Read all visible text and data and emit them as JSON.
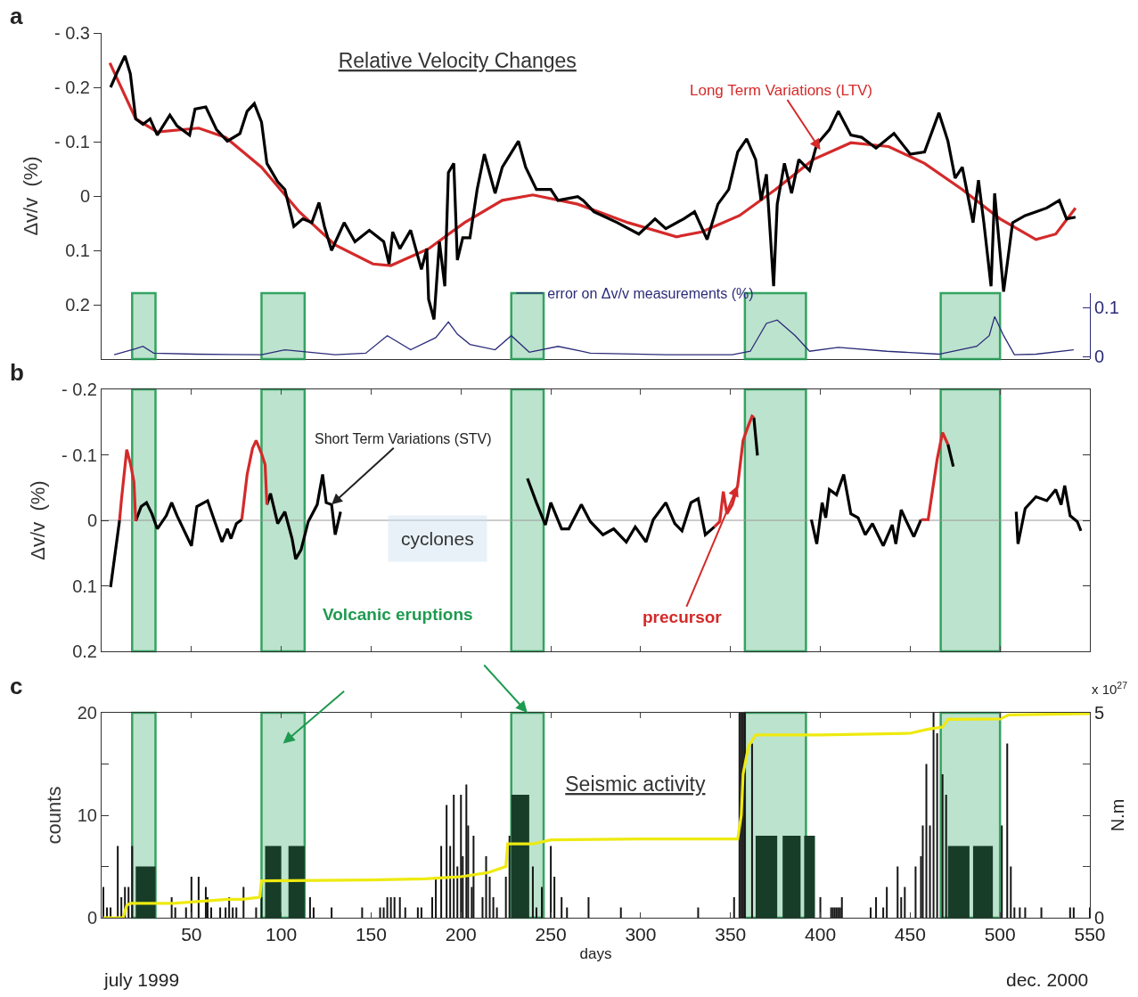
{
  "chart_data": [
    {
      "type": "line",
      "title": "Relative Velocity Changes",
      "ylabel": "Δv/v  (%)",
      "annotations": [
        "a",
        {
          "text": "Long Term Variations (LTV)",
          "x": 400,
          "y": -0.085
        }
      ],
      "xlim": [
        0,
        550
      ],
      "ylim": [
        0.3,
        -0.3
      ],
      "yticks": [
        {
          "value": -0.3,
          "label": "- 0.3"
        },
        {
          "value": -0.2,
          "label": "- 0.2"
        },
        {
          "value": -0.1,
          "label": "- 0.1"
        },
        0,
        0.1,
        0.2
      ],
      "tick_labels": "y",
      "series": [
        {
          "color": "#d42a2a",
          "x": [
            4.6,
            19,
            31,
            54,
            69,
            89,
            110,
            130,
            151,
            161,
            182,
            202,
            223,
            240,
            265,
            293,
            320,
            334,
            355,
            375,
            396,
            417,
            438,
            458,
            479,
            500,
            520,
            531,
            542
          ],
          "values": [
            -0.245,
            -0.142,
            -0.118,
            -0.125,
            -0.108,
            -0.053,
            0.029,
            0.09,
            0.125,
            0.128,
            0.097,
            0.049,
            0.008,
            -0.002,
            0.015,
            0.049,
            0.075,
            0.066,
            0.036,
            -0.012,
            -0.067,
            -0.098,
            -0.091,
            -0.06,
            -0.012,
            0.042,
            0.08,
            0.07,
            0.022
          ]
        },
        {
          "color": "#000000",
          "x": [
            5,
            9,
            13,
            16,
            19,
            23,
            27,
            31,
            38,
            42,
            49,
            52,
            58,
            64,
            70,
            77,
            81,
            85,
            89,
            92,
            98,
            102,
            107,
            112,
            117,
            121,
            124,
            128,
            135,
            141,
            149,
            157,
            160,
            162,
            166,
            172,
            178,
            181,
            182,
            185,
            188,
            191,
            193,
            196,
            198,
            201,
            205,
            209,
            213,
            219,
            223,
            232,
            236,
            242,
            250,
            254,
            265,
            268,
            274,
            287,
            299,
            308,
            314,
            324,
            330,
            337,
            343,
            349,
            354,
            359,
            364,
            367,
            370,
            374,
            376,
            380,
            384,
            388,
            394,
            398,
            405,
            410,
            417,
            423,
            431,
            441,
            450,
            458,
            466,
            471,
            475,
            479,
            485,
            488,
            491,
            495,
            497,
            502,
            507,
            514,
            520,
            526,
            533,
            537,
            542
          ],
          "values": [
            -0.2,
            -0.23,
            -0.258,
            -0.225,
            -0.142,
            -0.132,
            -0.142,
            -0.112,
            -0.149,
            -0.129,
            -0.112,
            -0.16,
            -0.164,
            -0.122,
            -0.101,
            -0.115,
            -0.156,
            -0.17,
            -0.136,
            -0.06,
            -0.026,
            -0.012,
            0.056,
            0.042,
            0.049,
            0.012,
            0.056,
            0.1,
            0.049,
            0.084,
            0.063,
            0.084,
            0.125,
            0.066,
            0.097,
            0.063,
            0.135,
            0.097,
            0.19,
            0.227,
            0.084,
            0.166,
            -0.043,
            -0.06,
            0.118,
            0.077,
            0.077,
            -0.012,
            -0.077,
            -0.005,
            -0.053,
            -0.101,
            -0.053,
            -0.012,
            -0.012,
            0.008,
            0.001,
            0.008,
            0.029,
            0.049,
            0.07,
            0.042,
            0.06,
            0.042,
            0.029,
            0.08,
            0.015,
            -0.012,
            -0.081,
            -0.105,
            -0.067,
            0.008,
            -0.04,
            0.166,
            0.015,
            -0.06,
            -0.005,
            -0.067,
            -0.047,
            -0.095,
            -0.122,
            -0.156,
            -0.112,
            -0.108,
            -0.088,
            -0.115,
            -0.077,
            -0.081,
            -0.153,
            -0.101,
            -0.033,
            -0.053,
            0.049,
            -0.029,
            0.049,
            0.166,
            -0.005,
            0.176,
            0.049,
            0.036,
            0.029,
            0.022,
            0.008,
            0.042,
            0.039
          ]
        }
      ]
    },
    {
      "type": "line",
      "xlim": [
        0,
        550
      ],
      "ylim": [
        -0.005,
        0.13
      ],
      "yticks": [
        0,
        0.1
      ],
      "tick_labels": "y",
      "legend": "top",
      "bands": [
        {
          "axis": "x",
          "from": 17,
          "to": 30,
          "color": "#b5e0c8"
        },
        {
          "axis": "x",
          "from": 89,
          "to": 113,
          "color": "#b5e0c8"
        },
        {
          "axis": "x",
          "from": 228,
          "to": 246,
          "color": "#b5e0c8"
        },
        {
          "axis": "x",
          "from": 358,
          "to": 392,
          "color": "#b5e0c8"
        },
        {
          "axis": "x",
          "from": 467,
          "to": 500,
          "color": "#b5e0c8"
        }
      ],
      "series": [
        {
          "name": "error on Δv/v measurements (%)",
          "color": "#2b2b7a",
          "x": [
            7,
            19,
            23,
            29,
            52,
            89,
            102,
            130,
            147,
            159,
            172,
            186,
            193,
            198,
            205,
            219,
            228,
            238,
            254,
            267,
            272,
            314,
            351,
            361,
            370,
            376,
            386,
            394,
            410,
            437,
            466,
            487,
            494,
            497,
            502,
            508,
            520,
            541
          ],
          "values": [
            0.004,
            0.016,
            0.021,
            0.007,
            0.005,
            0.004,
            0.014,
            0.004,
            0.007,
            0.043,
            0.014,
            0.039,
            0.071,
            0.046,
            0.025,
            0.014,
            0.043,
            0.009,
            0.021,
            0.011,
            0.007,
            0.004,
            0.004,
            0.011,
            0.068,
            0.075,
            0.043,
            0.011,
            0.019,
            0.011,
            0.005,
            0.021,
            0.043,
            0.082,
            0.043,
            0.004,
            0.005,
            0.014
          ]
        }
      ]
    },
    {
      "type": "line",
      "ylabel": "Δv/v  (%)",
      "annotations": [
        "b",
        {
          "text": "Short Term Variations (STV)",
          "x": 128,
          "y": -0.024
        },
        "cyclones",
        "Volcanic eruptions",
        {
          "text": "precursor",
          "x": 354,
          "y": -0.053
        }
      ],
      "xlim": [
        0,
        550
      ],
      "xticks": [
        50,
        100,
        150,
        200,
        250,
        300,
        350,
        400,
        450,
        500,
        550
      ],
      "ylim": [
        0.2,
        -0.2
      ],
      "yticks": [
        {
          "value": -0.2,
          "label": "- 0.2"
        },
        {
          "value": -0.1,
          "label": "- 0.1"
        },
        0,
        0.1,
        0.2
      ],
      "tick_labels": "y",
      "ref_lines": [
        {
          "axis": "y",
          "value": 0,
          "color": "#9a9a9a"
        }
      ],
      "bands": [
        {
          "axis": "x",
          "from": 17,
          "to": 30,
          "color": "#b5e0c8"
        },
        {
          "axis": "x",
          "from": 89,
          "to": 113,
          "color": "#b5e0c8"
        },
        {
          "axis": "x",
          "from": 228,
          "to": 246,
          "color": "#b5e0c8"
        },
        {
          "axis": "x",
          "from": 358,
          "to": 392,
          "color": "#b5e0c8"
        },
        {
          "axis": "x",
          "from": 467,
          "to": 500,
          "color": "#b5e0c8"
        }
      ],
      "series": [
        {
          "color": "#000000",
          "x": [
            5,
            10,
            14,
            19,
            22,
            25,
            28,
            31,
            36,
            39,
            42,
            46,
            50,
            53,
            59,
            63,
            67,
            70,
            72,
            75,
            78,
            85,
            92,
            94,
            98,
            102,
            106,
            108,
            111,
            115,
            120,
            123,
            125,
            128,
            130,
            133,
            180,
            237,
            242,
            247,
            250,
            256,
            260,
            267,
            272,
            279,
            285,
            292,
            297,
            303,
            307,
            314,
            319,
            323,
            328,
            332,
            336,
            341,
            350,
            363,
            365,
            380,
            395,
            398,
            401,
            403,
            405,
            409,
            413,
            417,
            421,
            425,
            429,
            435,
            440,
            442,
            445,
            448,
            452,
            456,
            463,
            471,
            474,
            490,
            509,
            510,
            514,
            520,
            526,
            531,
            534,
            536,
            539,
            543,
            545
          ],
          "values": [
            0.102,
            0,
            null,
            0.001,
            -0.021,
            -0.027,
            -0.01,
            0.013,
            -0.007,
            -0.027,
            -0.007,
            0.016,
            0.039,
            -0.021,
            -0.03,
            0.002,
            0.033,
            0.013,
            0.028,
            0.005,
            -0.001,
            null,
            -0.024,
            -0.041,
            0.005,
            -0.013,
            0.028,
            0.059,
            0.045,
            0.002,
            -0.024,
            -0.07,
            -0.027,
            -0.024,
            0.022,
            -0.013,
            null,
            -0.064,
            -0.027,
            0.007,
            -0.027,
            0.013,
            0.013,
            -0.024,
            0.002,
            0.022,
            0.013,
            0.033,
            0.01,
            0.033,
            -0.001,
            -0.027,
            0.005,
            0.016,
            -0.027,
            -0.033,
            0.022,
            0.01,
            null,
            -0.157,
            -0.099,
            null,
            -0.001,
            0.036,
            -0.027,
            -0.004,
            -0.047,
            -0.039,
            -0.07,
            -0.01,
            -0.004,
            0.022,
            0.005,
            0.039,
            0.007,
            0.036,
            -0.016,
            0.002,
            0.025,
            -0.001,
            null,
            -0.116,
            -0.082,
            null,
            -0.013,
            0.036,
            -0.018,
            -0.036,
            -0.03,
            -0.047,
            -0.024,
            -0.053,
            -0.007,
            0.002,
            0.016
          ]
        },
        {
          "color": "#d42a2a",
          "x": [
            10,
            11,
            14,
            16,
            18,
            19,
            50,
            78,
            81,
            84,
            86,
            89,
            91,
            92,
            200,
            341,
            344,
            346,
            348,
            351,
            354,
            357,
            360,
            362,
            363,
            420,
            456,
            460,
            465,
            468,
            471
          ],
          "values": [
            0,
            -0.03,
            -0.108,
            -0.087,
            -0.059,
            0.001,
            null,
            -0.001,
            -0.07,
            -0.11,
            -0.122,
            -0.102,
            -0.085,
            -0.024,
            null,
            0.01,
            0.002,
            -0.044,
            -0.01,
            -0.024,
            -0.053,
            -0.122,
            -0.145,
            -0.159,
            -0.157,
            null,
            -0.001,
            -0.001,
            -0.093,
            -0.134,
            -0.116
          ]
        }
      ]
    },
    {
      "type": "bar",
      "title": "Seismic activity",
      "xlabel": "days",
      "ylabel": "counts",
      "y2label": "N.m",
      "annotations": [
        "c",
        "july 1999",
        "dec. 2000",
        "x 10$^{27}$"
      ],
      "xlim": [
        0,
        550
      ],
      "xticks": [
        50,
        100,
        150,
        200,
        250,
        300,
        350,
        400,
        450,
        500,
        550
      ],
      "ylim": [
        0,
        20
      ],
      "yticks": [
        0,
        {
          "value": 5,
          "label": null
        },
        10,
        {
          "value": 15,
          "label": null
        },
        20
      ],
      "y2lim": [
        0,
        5
      ],
      "y2ticks": [
        0,
        {
          "value": 1.25,
          "label": null
        },
        {
          "value": 2.5,
          "label": null
        },
        {
          "value": 3.75,
          "label": null
        },
        5
      ],
      "bands": [
        {
          "axis": "x",
          "from": 17,
          "to": 30,
          "color": "#b5e0c8"
        },
        {
          "axis": "x",
          "from": 89,
          "to": 113,
          "color": "#b5e0c8"
        },
        {
          "axis": "x",
          "from": 228,
          "to": 246,
          "color": "#b5e0c8"
        },
        {
          "axis": "x",
          "from": 358,
          "to": 392,
          "color": "#b5e0c8"
        },
        {
          "axis": "x",
          "from": 467,
          "to": 500,
          "color": "#b5e0c8"
        }
      ],
      "series": [
        {
          "color": "#161616",
          "x": [
            1,
            3,
            5,
            9,
            11,
            13,
            15,
            17,
            39,
            41,
            47,
            50,
            54,
            58,
            59,
            61,
            66,
            69,
            71,
            73,
            75,
            79,
            86,
            89,
            116,
            118,
            128,
            145,
            155,
            157,
            159,
            161,
            163,
            166,
            169,
            176,
            178,
            184,
            186,
            189,
            192,
            194,
            196,
            198,
            200,
            201,
            203,
            204,
            206,
            207,
            212,
            214,
            216,
            218,
            220,
            225,
            227,
            240,
            242,
            245,
            250,
            252,
            256,
            259,
            271,
            289,
            332,
            352,
            355,
            356,
            357,
            358,
            362,
            400,
            406,
            407,
            408,
            409,
            410,
            411,
            412,
            428,
            431,
            435,
            437,
            443,
            445,
            447,
            453,
            456,
            457,
            459,
            461,
            463,
            465,
            468,
            470,
            501,
            504,
            506,
            508,
            511,
            514,
            523,
            539,
            541,
            550
          ],
          "values": [
            3,
            1,
            1,
            7,
            2,
            3,
            3,
            7,
            2,
            1,
            1,
            4,
            4,
            3,
            2,
            1,
            1,
            1,
            2,
            1,
            1,
            3,
            1,
            2,
            2,
            1,
            1,
            1,
            1,
            1,
            2,
            2,
            2,
            2,
            1,
            1,
            1,
            2,
            4,
            7,
            11,
            7,
            12,
            5,
            12,
            6,
            13,
            9,
            3,
            8,
            2,
            6,
            4,
            2,
            1,
            4,
            8,
            5,
            1,
            3,
            7,
            4,
            2,
            1,
            2,
            1,
            1,
            2,
            20,
            20,
            20,
            20,
            17,
            2,
            1,
            1,
            1,
            1,
            1,
            1,
            2,
            1,
            2,
            1,
            3,
            5,
            2,
            3,
            5,
            6,
            9,
            15,
            9,
            20,
            18,
            14,
            12,
            9,
            17,
            5,
            1,
            1,
            1,
            1,
            1,
            1,
            1
          ]
        },
        {
          "type": "histogram",
          "color": "#173d28",
          "bins": [
            19,
            30,
            91,
            100,
            104,
            113,
            228,
            238,
            364,
            376,
            379,
            389,
            391,
            397,
            471,
            483,
            485,
            496
          ],
          "values": [
            5,
            0,
            7,
            0,
            7,
            0,
            12,
            0,
            8,
            0,
            8,
            0,
            8,
            0,
            7,
            0,
            7
          ]
        },
        {
          "type": "line",
          "axis": "y2",
          "color": "#eeea10",
          "x": [
            1,
            12,
            14,
            16,
            30,
            40,
            70,
            78,
            88,
            89,
            90,
            150,
            180,
            200,
            215,
            225,
            226,
            240,
            250,
            300,
            354,
            356,
            357,
            360,
            364,
            400,
            450,
            460,
            468,
            471,
            500,
            505,
            550
          ],
          "values": [
            0,
            0,
            0.3,
            0.35,
            0.35,
            0.35,
            0.45,
            0.45,
            0.5,
            0.9,
            0.9,
            0.92,
            0.95,
            1.0,
            1.1,
            1.25,
            1.8,
            1.8,
            1.9,
            1.92,
            1.92,
            2.5,
            3.5,
            4.18,
            4.46,
            4.46,
            4.5,
            4.6,
            4.65,
            4.84,
            4.85,
            4.95,
            4.98
          ]
        }
      ]
    }
  ]
}
